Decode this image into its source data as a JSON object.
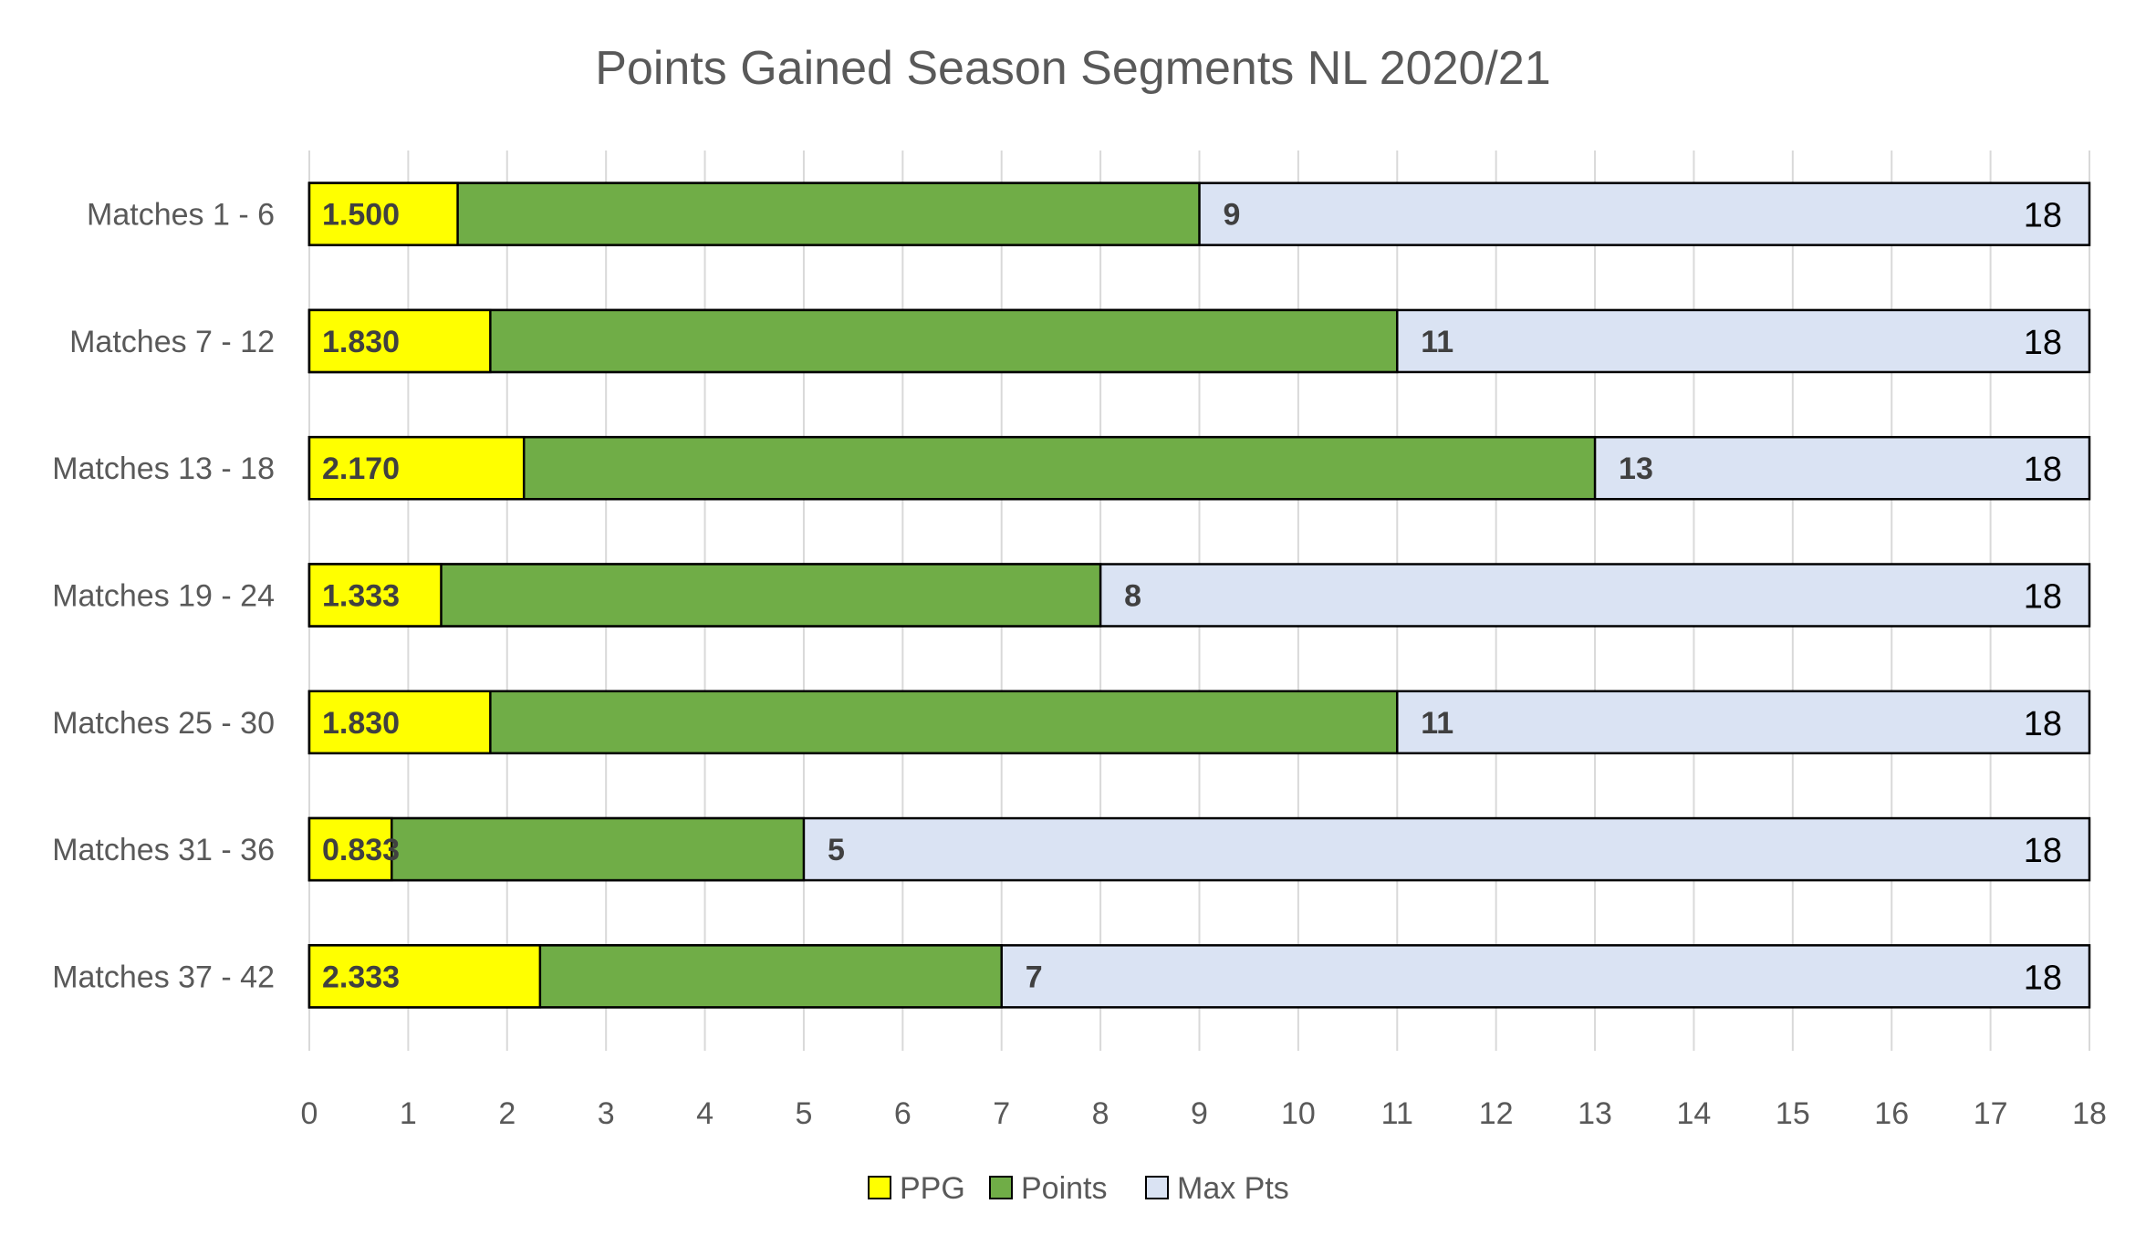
{
  "chart_data": {
    "type": "bar",
    "orientation": "horizontal",
    "title": "Points Gained Season Segments NL 2020/21",
    "xlabel": "",
    "ylabel": "",
    "xlim": [
      0,
      18
    ],
    "x_ticks": [
      0,
      1,
      2,
      3,
      4,
      5,
      6,
      7,
      8,
      9,
      10,
      11,
      12,
      13,
      14,
      15,
      16,
      17,
      18
    ],
    "grid": true,
    "legend_position": "bottom",
    "categories": [
      "Matches 1 - 6",
      "Matches 7 - 12",
      "Matches 13 - 18",
      "Matches 19 - 24",
      "Matches 25 - 30",
      "Matches 31 - 36",
      "Matches 37 - 42"
    ],
    "series": [
      {
        "name": "PPG",
        "color": "#ffff00",
        "values": [
          1.5,
          1.83,
          2.17,
          1.333,
          1.83,
          0.833,
          2.333
        ],
        "labels": [
          "1.500",
          "1.830",
          "2.170",
          "1.333",
          "1.830",
          "0.833",
          "2.333"
        ]
      },
      {
        "name": "Points",
        "color": "#70ad47",
        "values": [
          9,
          11,
          13,
          8,
          11,
          5,
          7
        ],
        "labels": [
          "9",
          "11",
          "13",
          "8",
          "11",
          "5",
          "7"
        ]
      },
      {
        "name": "Max Pts",
        "color": "#dae3f3",
        "values": [
          18,
          18,
          18,
          18,
          18,
          18,
          18
        ],
        "labels": [
          "18",
          "18",
          "18",
          "18",
          "18",
          "18",
          "18"
        ]
      }
    ]
  }
}
